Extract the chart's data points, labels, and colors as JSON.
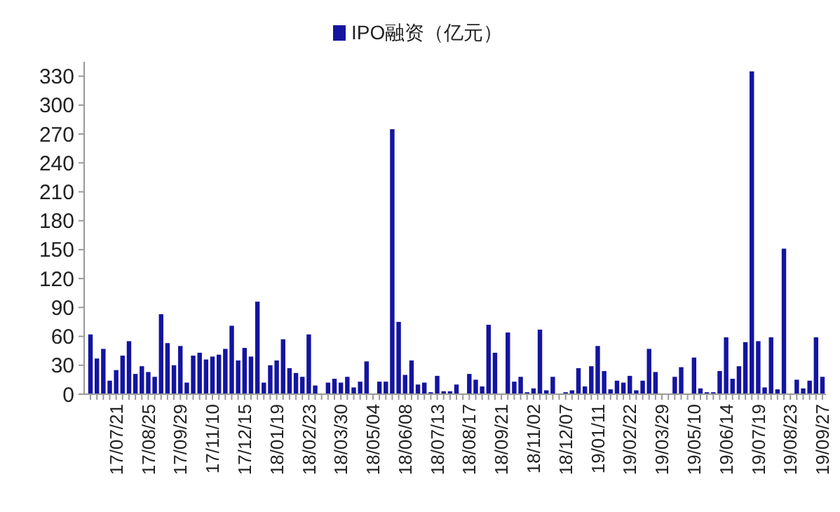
{
  "chart_data": {
    "type": "bar",
    "categories": [
      null,
      null,
      null,
      null,
      "17/07/21",
      null,
      null,
      null,
      null,
      "17/08/25",
      null,
      null,
      null,
      null,
      "17/09/29",
      null,
      null,
      null,
      null,
      "17/11/10",
      null,
      null,
      null,
      null,
      "17/12/15",
      null,
      null,
      null,
      null,
      "18/01/19",
      null,
      null,
      null,
      null,
      "18/02/23",
      null,
      null,
      null,
      null,
      "18/03/30",
      null,
      null,
      null,
      null,
      "18/05/04",
      null,
      null,
      null,
      null,
      "18/06/08",
      null,
      null,
      null,
      null,
      "18/07/13",
      null,
      null,
      null,
      null,
      "18/08/17",
      null,
      null,
      null,
      null,
      "18/09/21",
      null,
      null,
      null,
      null,
      "18/11/02",
      null,
      null,
      null,
      null,
      "18/12/07",
      null,
      null,
      null,
      null,
      "19/01/11",
      null,
      null,
      null,
      null,
      "19/02/22",
      null,
      null,
      null,
      null,
      "19/03/29",
      null,
      null,
      null,
      null,
      "19/05/10",
      null,
      null,
      null,
      null,
      "19/06/14",
      null,
      null,
      null,
      null,
      "19/07/19",
      null,
      null,
      null,
      null,
      "19/08/23",
      null,
      null,
      null,
      null,
      "19/09/27"
    ],
    "series": [
      {
        "name": "IPO融资（亿元）",
        "color": "#1414a0",
        "values": [
          62,
          37,
          47,
          14,
          25,
          40,
          55,
          21,
          29,
          23,
          18,
          83,
          53,
          30,
          50,
          12,
          40,
          43,
          36,
          39,
          41,
          47,
          71,
          35,
          48,
          39,
          96,
          12,
          30,
          35,
          57,
          27,
          22,
          18,
          62,
          9,
          0,
          12,
          16,
          12,
          18,
          7,
          13,
          34,
          0,
          13,
          13,
          275,
          75,
          20,
          35,
          10,
          12,
          2,
          19,
          3,
          3,
          10,
          0,
          21,
          15,
          8,
          72,
          43,
          0,
          64,
          13,
          18,
          2,
          6,
          67,
          4,
          18,
          0,
          2,
          4,
          27,
          8,
          29,
          50,
          24,
          5,
          14,
          12,
          19,
          4,
          14,
          47,
          23,
          0,
          0,
          18,
          28,
          0,
          38,
          6,
          2,
          2,
          24,
          59,
          16,
          29,
          54,
          335,
          55,
          7,
          59,
          5,
          151,
          0,
          15,
          6,
          14,
          59,
          18
        ]
      }
    ],
    "ylim": [
      0,
      345
    ],
    "yticks": [
      0,
      30,
      60,
      90,
      120,
      150,
      180,
      210,
      240,
      270,
      300,
      330
    ],
    "grid": false,
    "legend": "top"
  }
}
